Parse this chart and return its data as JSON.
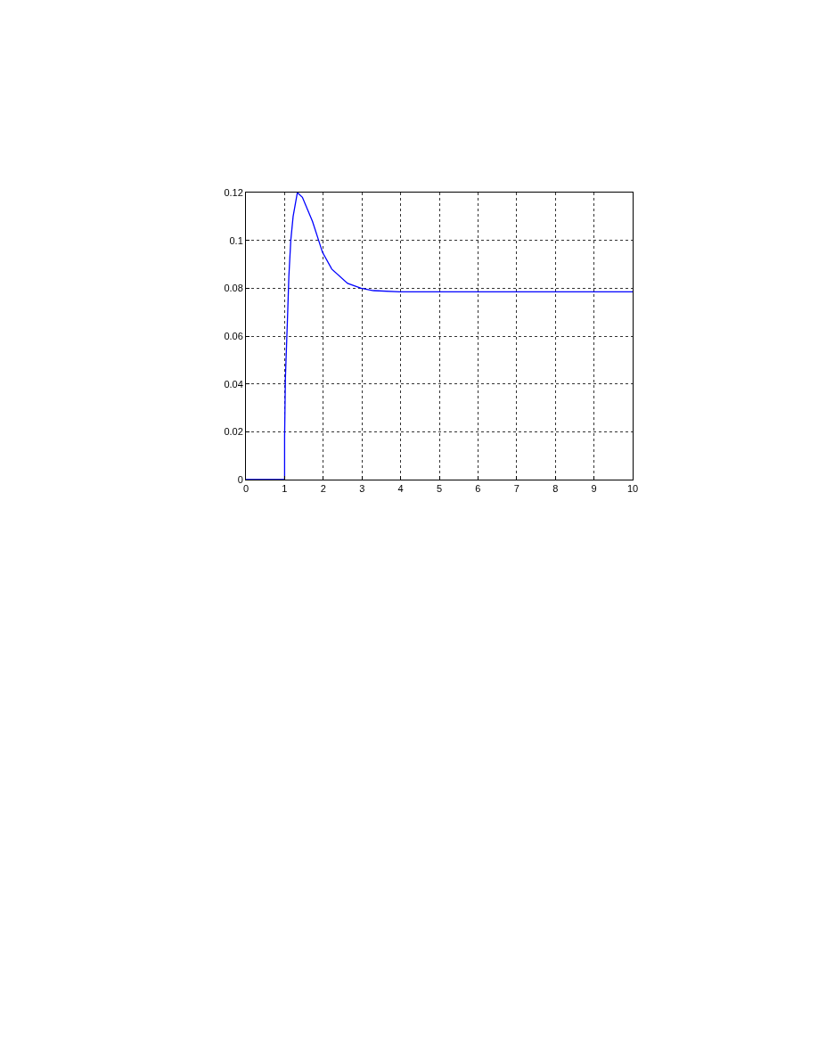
{
  "chart_data": {
    "type": "line",
    "series": [
      {
        "color": "#0000ff",
        "x": [
          0,
          1.0,
          1.0,
          1.02,
          1.05,
          1.08,
          1.11,
          1.16,
          1.22,
          1.33,
          1.46,
          1.72,
          1.98,
          2.22,
          2.63,
          2.98,
          3.3,
          3.97,
          10
        ],
        "values": [
          0,
          0,
          0.018,
          0.042,
          0.056,
          0.07,
          0.085,
          0.1,
          0.11,
          0.12,
          0.118,
          0.108,
          0.095,
          0.088,
          0.082,
          0.08,
          0.079,
          0.0785,
          0.0785
        ]
      }
    ],
    "xlim": [
      0,
      10
    ],
    "xticks": [
      0,
      1,
      2,
      3,
      4,
      5,
      6,
      7,
      8,
      9,
      10
    ],
    "ylim": [
      0,
      0.12
    ],
    "yticks": [
      0,
      0.02,
      0.04,
      0.06,
      0.08,
      0.1,
      0.12
    ],
    "grid": true,
    "line_style": "solid",
    "marker": "none"
  }
}
